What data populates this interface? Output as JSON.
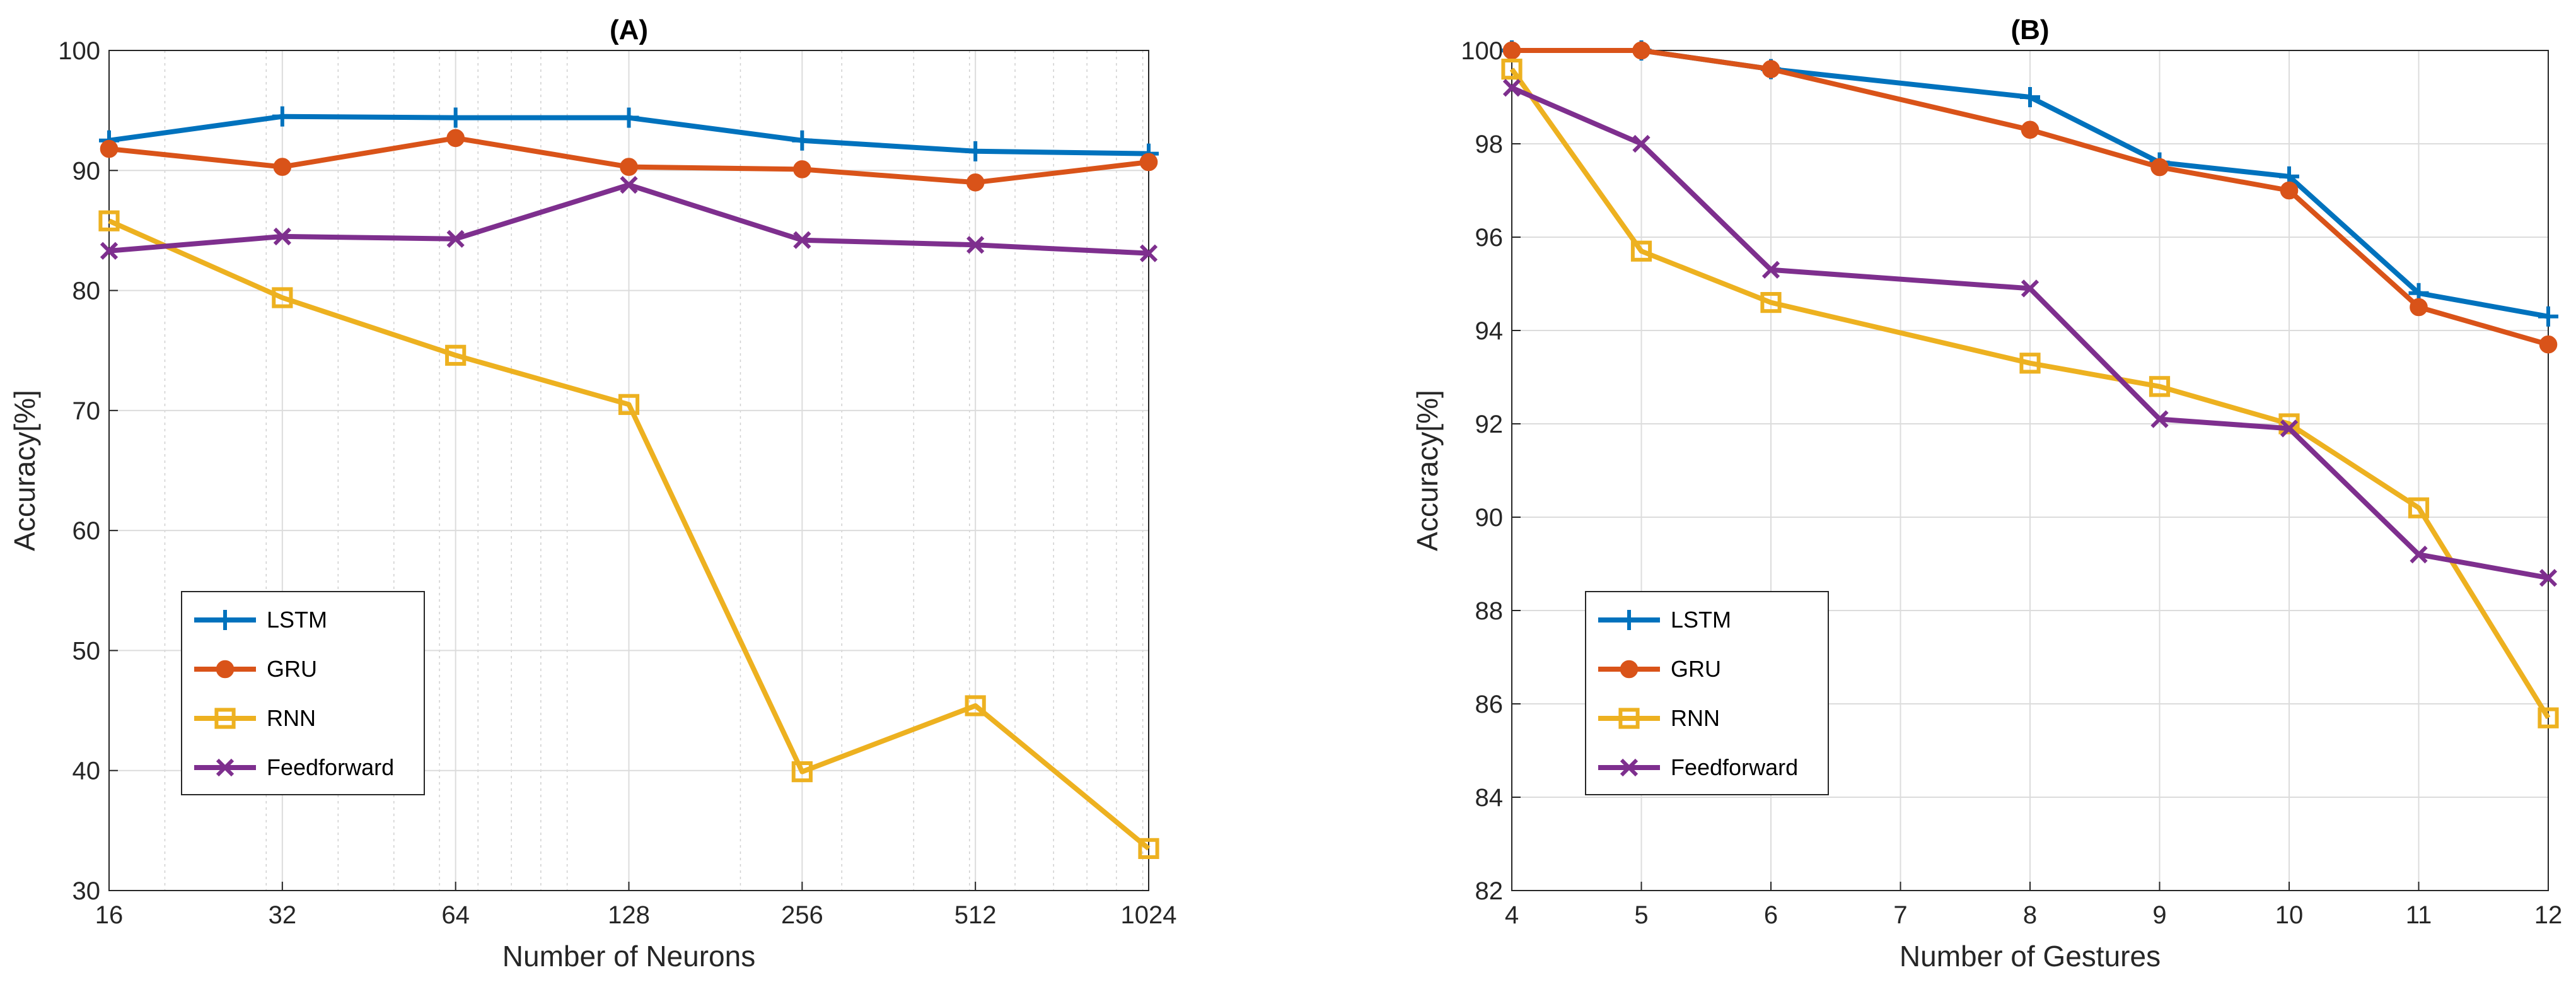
{
  "chart_data": [
    {
      "type": "line",
      "title": "(A)",
      "xlabel": "Number of Neurons",
      "ylabel": "Accuracy[%]",
      "xscale": "log2",
      "x": [
        16,
        32,
        64,
        128,
        256,
        512,
        1024
      ],
      "x_tick_labels": [
        "16",
        "32",
        "64",
        "128",
        "256",
        "512",
        "1024"
      ],
      "xlim": [
        16,
        1024
      ],
      "ylim": [
        30,
        100
      ],
      "y_ticks": [
        30,
        40,
        50,
        60,
        70,
        80,
        90,
        100
      ],
      "y_tick_labels": [
        "30",
        "40",
        "50",
        "60",
        "70",
        "80",
        "90",
        "100"
      ],
      "grid": true,
      "legend_position": "lower-left",
      "series": [
        {
          "name": "LSTM",
          "color": "#0072BD",
          "marker": "plus",
          "values": [
            92.5,
            94.5,
            94.4,
            94.4,
            92.5,
            91.6,
            91.4
          ]
        },
        {
          "name": "GRU",
          "color": "#D95319",
          "marker": "circle",
          "values": [
            91.8,
            90.3,
            92.7,
            90.3,
            90.1,
            89.0,
            90.7
          ]
        },
        {
          "name": "RNN",
          "color": "#EDB120",
          "marker": "square",
          "values": [
            85.8,
            79.4,
            74.6,
            70.5,
            39.9,
            45.4,
            33.5
          ]
        },
        {
          "name": "Feedforward",
          "color": "#7E2F8E",
          "marker": "x",
          "values": [
            83.3,
            84.5,
            84.3,
            88.8,
            84.2,
            83.8,
            83.1
          ]
        }
      ]
    },
    {
      "type": "line",
      "title": "(B)",
      "xlabel": "Number of Gestures",
      "ylabel": "Accuracy[%]",
      "xscale": "linear",
      "x": [
        4,
        5,
        6,
        8,
        9,
        10,
        11,
        12
      ],
      "x_ticks": [
        4,
        5,
        6,
        7,
        8,
        9,
        10,
        11,
        12
      ],
      "x_tick_labels": [
        "4",
        "5",
        "6",
        "7",
        "8",
        "9",
        "10",
        "11",
        "12"
      ],
      "xlim": [
        4,
        12
      ],
      "ylim": [
        82,
        100
      ],
      "y_ticks": [
        82,
        84,
        86,
        88,
        90,
        92,
        94,
        96,
        98,
        100
      ],
      "y_tick_labels": [
        "82",
        "84",
        "86",
        "88",
        "90",
        "92",
        "94",
        "96",
        "98",
        "100"
      ],
      "grid": true,
      "legend_position": "lower-left",
      "series": [
        {
          "name": "LSTM",
          "color": "#0072BD",
          "marker": "plus",
          "values": [
            100.0,
            100.0,
            99.6,
            99.0,
            97.6,
            97.3,
            94.8,
            94.3
          ]
        },
        {
          "name": "GRU",
          "color": "#D95319",
          "marker": "circle",
          "values": [
            100.0,
            100.0,
            99.6,
            98.3,
            97.5,
            97.0,
            94.5,
            93.7
          ]
        },
        {
          "name": "RNN",
          "color": "#EDB120",
          "marker": "square",
          "values": [
            99.6,
            95.7,
            94.6,
            93.3,
            92.8,
            92.0,
            90.2,
            85.7
          ]
        },
        {
          "name": "Feedforward",
          "color": "#7E2F8E",
          "marker": "x",
          "values": [
            99.2,
            98.0,
            95.3,
            94.9,
            92.1,
            91.9,
            89.2,
            88.7
          ]
        }
      ]
    }
  ]
}
